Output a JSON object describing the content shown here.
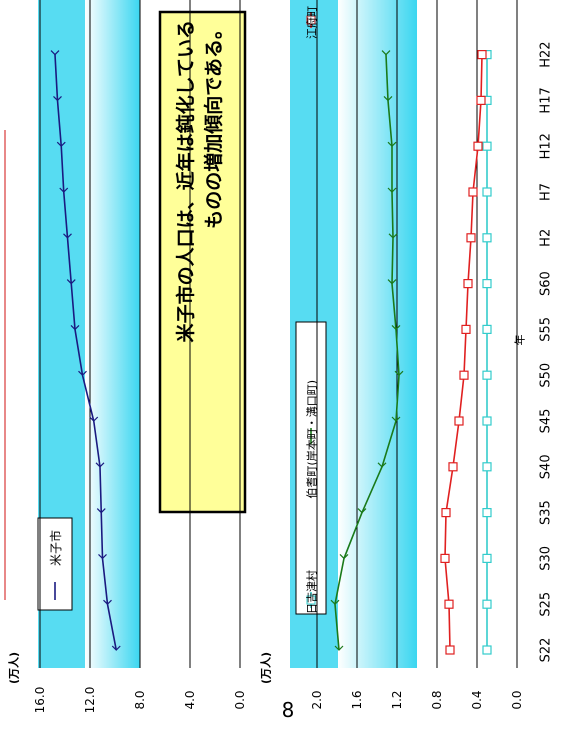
{
  "page_number": "8",
  "x_axis_label": "年",
  "callout": {
    "line1": "米子市の人口は、近年は鈍化している",
    "line2": "ものの増加傾向である。"
  },
  "colors": {
    "yonago": "#1a1a80",
    "hiezu": "#33cccc",
    "hoki": "#1a7a1a",
    "kofu": "#e02020",
    "callout_bg": "#ffff99",
    "gradient_light": "#ffffff",
    "gradient_dark": "#3ad6f0",
    "red_rule": "#e06060"
  },
  "chart_data": [
    {
      "type": "line",
      "title": "",
      "unit_label": "(万人)",
      "xlabel": "年",
      "ylabel": "",
      "categories": [
        "S22",
        "S25",
        "S30",
        "S35",
        "S40",
        "S45",
        "S50",
        "S55",
        "S60",
        "H2",
        "H7",
        "H12",
        "H17",
        "H22"
      ],
      "ylim": [
        0,
        16
      ],
      "yticks": [
        "0.0",
        "4.0",
        "8.0",
        "12.0",
        "16.0"
      ],
      "series": [
        {
          "name": "米子市",
          "marker": "arrow",
          "values": [
            9.9,
            10.6,
            11.0,
            11.1,
            11.2,
            11.7,
            12.6,
            13.2,
            13.5,
            13.8,
            14.1,
            14.3,
            14.6,
            14.8
          ]
        }
      ],
      "legend": "top-left"
    },
    {
      "type": "line",
      "title": "",
      "unit_label": "(万人)",
      "xlabel": "年",
      "ylabel": "",
      "categories": [
        "S22",
        "S25",
        "S30",
        "S35",
        "S40",
        "S45",
        "S50",
        "S55",
        "S60",
        "H2",
        "H7",
        "H12",
        "H17",
        "H22"
      ],
      "ylim": [
        0,
        2.0
      ],
      "yticks": [
        "0.0",
        "0.4",
        "0.8",
        "1.2",
        "1.6",
        "2.0"
      ],
      "series": [
        {
          "name": "日吉津村",
          "marker": "square",
          "values": [
            0.3,
            0.3,
            0.3,
            0.3,
            0.3,
            0.3,
            0.3,
            0.3,
            0.3,
            0.3,
            0.3,
            0.3,
            0.3,
            0.3
          ]
        },
        {
          "name": "伯耆町(岸本町・溝口町)",
          "marker": "arrow",
          "values": [
            1.78,
            1.82,
            1.73,
            1.55,
            1.35,
            1.21,
            1.18,
            1.21,
            1.25,
            1.24,
            1.25,
            1.25,
            1.29,
            1.31
          ]
        },
        {
          "name": "江府町",
          "marker": "square",
          "values": [
            0.67,
            0.68,
            0.72,
            0.71,
            0.64,
            0.58,
            0.53,
            0.51,
            0.49,
            0.46,
            0.44,
            0.39,
            0.36,
            0.35
          ]
        }
      ],
      "legend": "top"
    }
  ]
}
